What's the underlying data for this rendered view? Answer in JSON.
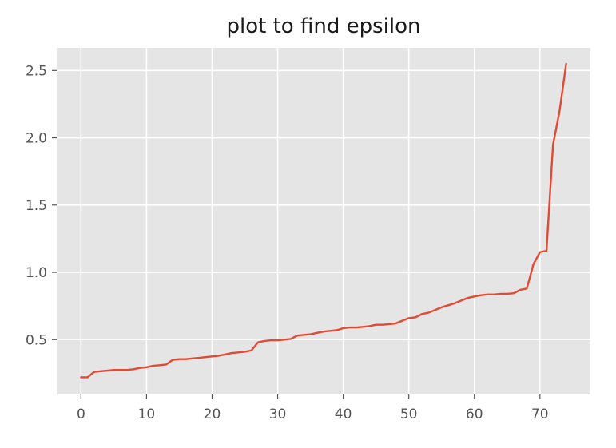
{
  "chart_data": {
    "type": "line",
    "title": "plot to find epsilon",
    "xlabel": "",
    "ylabel": "",
    "xlim": [
      -3.7,
      77.7
    ],
    "ylim": [
      0.092,
      2.668
    ],
    "xticks": [
      0,
      10,
      20,
      30,
      40,
      50,
      60,
      70
    ],
    "yticks": [
      0.5,
      1.0,
      1.5,
      2.0,
      2.5
    ],
    "ytick_labels": [
      "0.5",
      "1.0",
      "1.5",
      "2.0",
      "2.5"
    ],
    "grid": true,
    "style": "ggplot",
    "background_color": "#e5e5e5",
    "grid_color": "#ffffff",
    "line_color": "#e24a33",
    "series": [
      {
        "x": [
          0,
          1,
          2,
          3,
          4,
          5,
          6,
          7,
          8,
          9,
          10,
          11,
          12,
          13,
          14,
          15,
          16,
          17,
          18,
          19,
          20,
          21,
          22,
          23,
          24,
          25,
          26,
          27,
          28,
          29,
          30,
          31,
          32,
          33,
          34,
          35,
          36,
          37,
          38,
          39,
          40,
          41,
          42,
          43,
          44,
          45,
          46,
          47,
          48,
          49,
          50,
          51,
          52,
          53,
          54,
          55,
          56,
          57,
          58,
          59,
          60,
          61,
          62,
          63,
          64,
          65,
          66,
          67,
          68,
          69,
          70,
          71,
          72,
          73,
          74
        ],
        "y": [
          0.22,
          0.22,
          0.26,
          0.265,
          0.27,
          0.275,
          0.275,
          0.275,
          0.28,
          0.29,
          0.295,
          0.305,
          0.31,
          0.315,
          0.35,
          0.355,
          0.355,
          0.36,
          0.365,
          0.37,
          0.375,
          0.38,
          0.39,
          0.4,
          0.405,
          0.41,
          0.42,
          0.48,
          0.49,
          0.495,
          0.495,
          0.5,
          0.505,
          0.53,
          0.535,
          0.54,
          0.55,
          0.56,
          0.565,
          0.57,
          0.585,
          0.59,
          0.59,
          0.595,
          0.6,
          0.61,
          0.61,
          0.615,
          0.62,
          0.64,
          0.66,
          0.665,
          0.69,
          0.7,
          0.72,
          0.74,
          0.755,
          0.77,
          0.79,
          0.81,
          0.82,
          0.83,
          0.835,
          0.835,
          0.84,
          0.84,
          0.845,
          0.87,
          0.88,
          1.06,
          1.15,
          1.16,
          1.95,
          2.2,
          2.55
        ]
      }
    ]
  }
}
